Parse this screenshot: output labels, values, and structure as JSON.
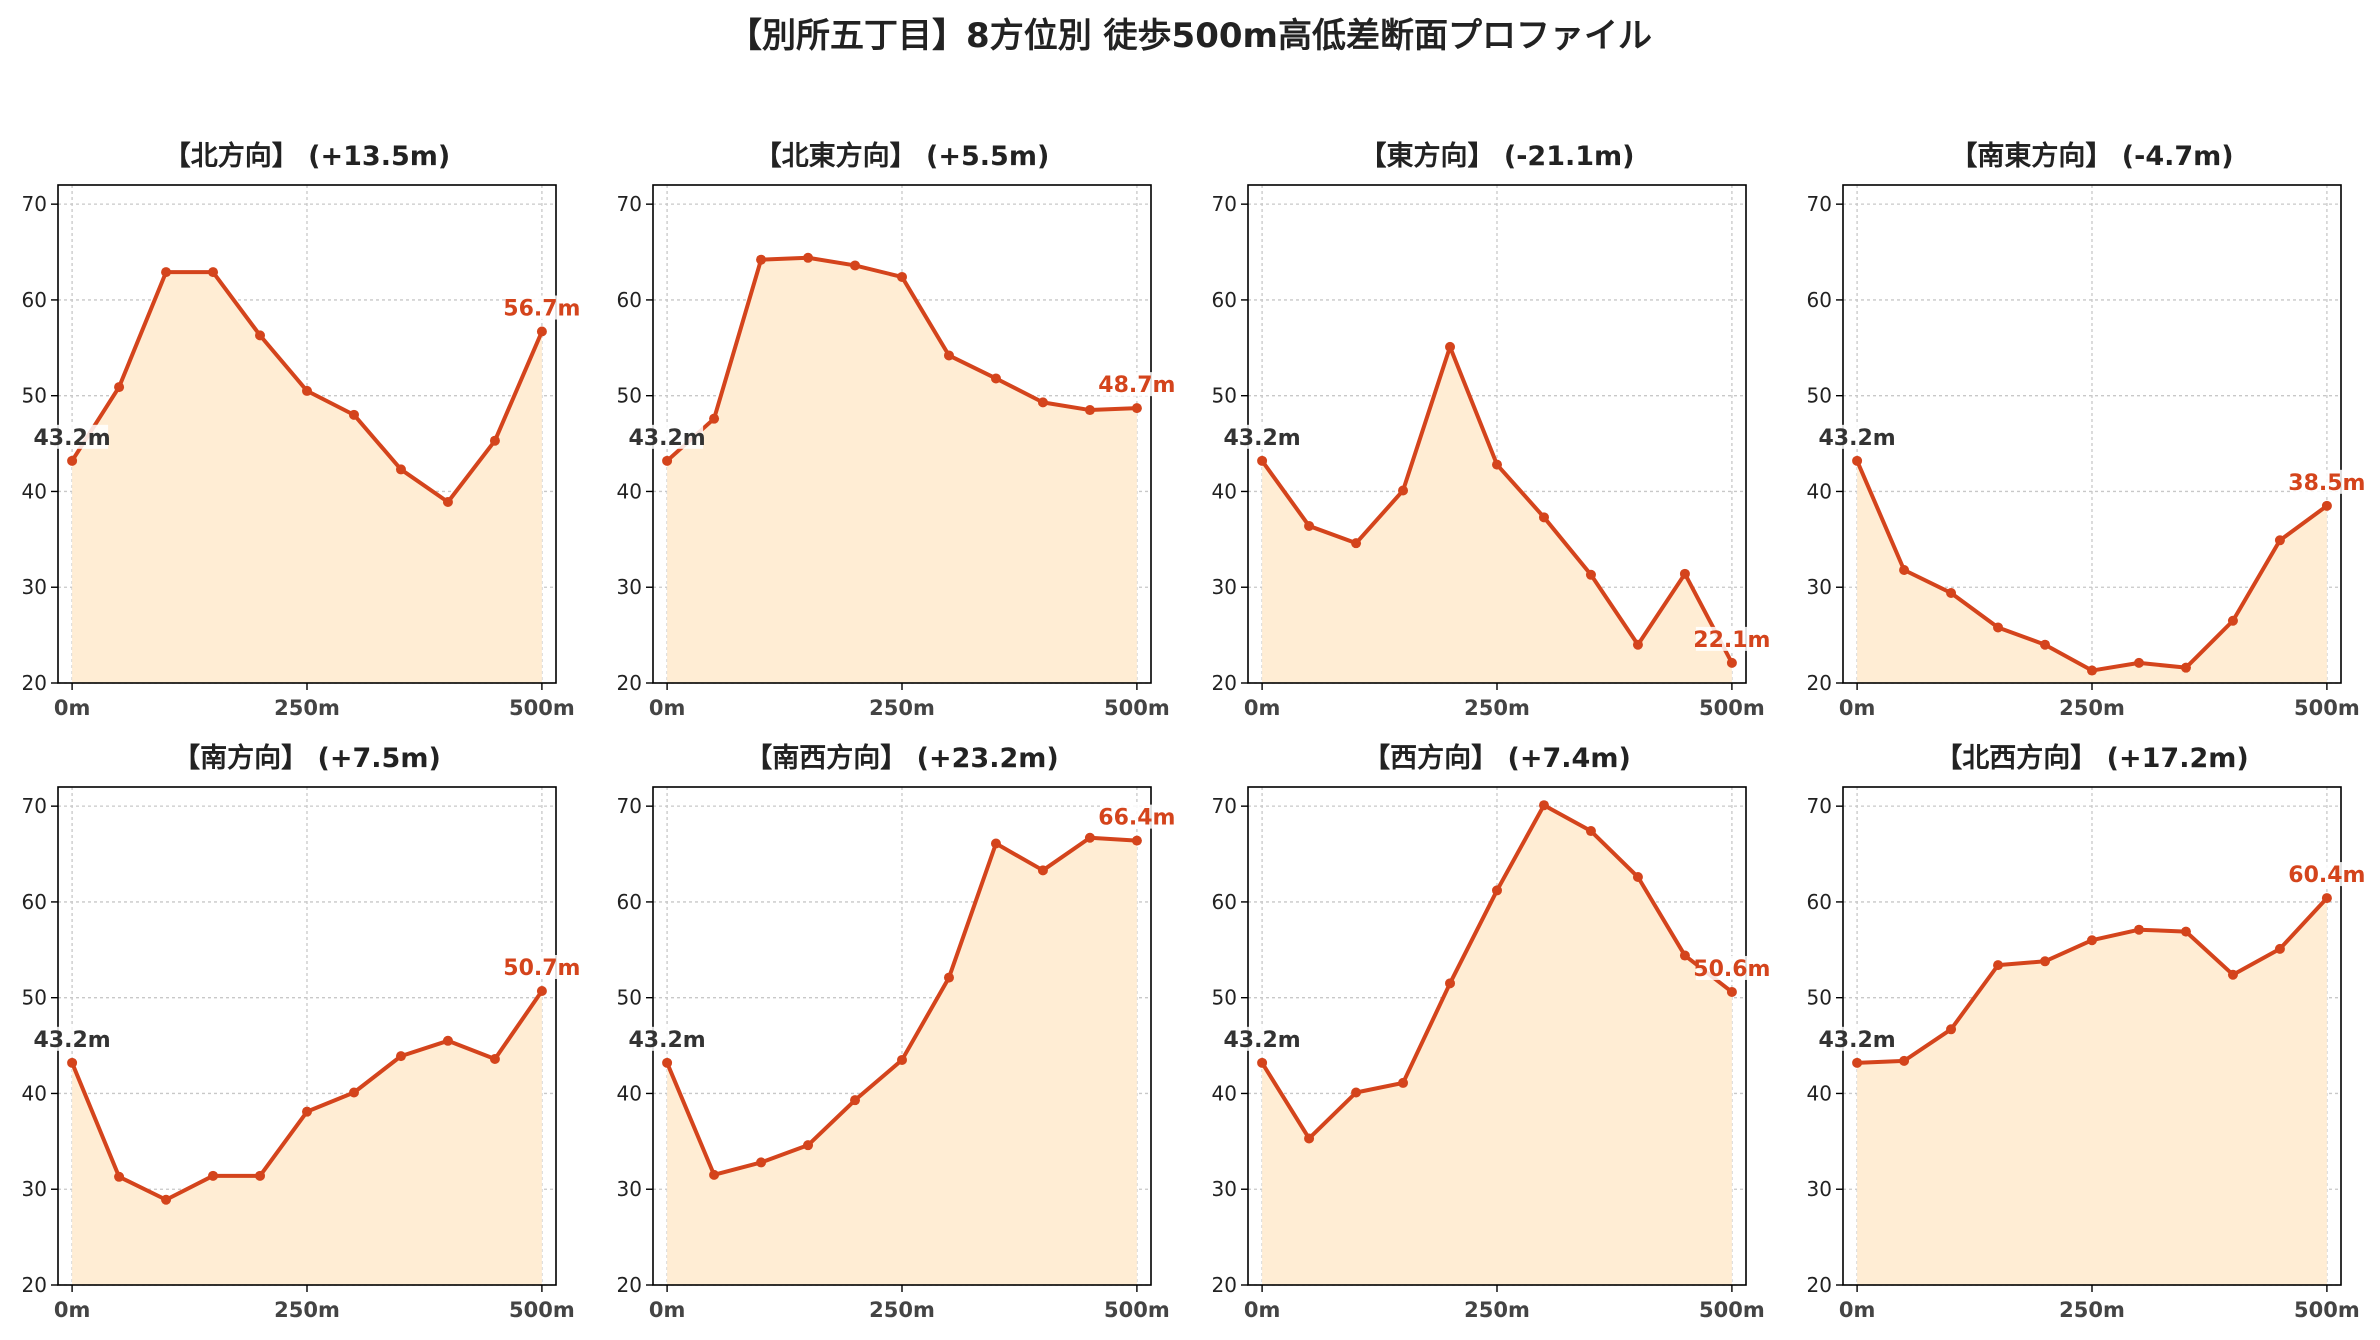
{
  "title": "【別所五丁目】8方位別 徒歩500m高低差断面プロファイル",
  "colors": {
    "line": "#d4441c",
    "fill": "#ffedd4",
    "start_label": "#333333",
    "end_label": "#d4441c",
    "grid": "#c8c8c8",
    "axis": "#000000"
  },
  "chart_data": [
    {
      "type": "area",
      "title": "【北方向】 (+13.5m)",
      "x": [
        0,
        50,
        100,
        150,
        200,
        250,
        300,
        350,
        400,
        450,
        500
      ],
      "y": [
        43.2,
        50.9,
        62.9,
        62.9,
        56.3,
        50.5,
        48.0,
        42.3,
        38.9,
        45.3,
        56.7
      ],
      "xticks": [
        0,
        250,
        500
      ],
      "xtick_labels": [
        "0m",
        "250m",
        "500m"
      ],
      "yticks": [
        20,
        30,
        40,
        50,
        60,
        70
      ],
      "xlim": [
        -15,
        515
      ],
      "ylim": [
        20,
        72
      ],
      "start_label": "43.2m",
      "end_label": "56.7m",
      "grid": true
    },
    {
      "type": "area",
      "title": "【北東方向】 (+5.5m)",
      "x": [
        0,
        50,
        100,
        150,
        200,
        250,
        300,
        350,
        400,
        450,
        500
      ],
      "y": [
        43.2,
        47.6,
        64.2,
        64.4,
        63.6,
        62.4,
        54.2,
        51.8,
        49.3,
        48.5,
        48.7
      ],
      "xticks": [
        0,
        250,
        500
      ],
      "xtick_labels": [
        "0m",
        "250m",
        "500m"
      ],
      "yticks": [
        20,
        30,
        40,
        50,
        60,
        70
      ],
      "xlim": [
        -15,
        515
      ],
      "ylim": [
        20,
        72
      ],
      "start_label": "43.2m",
      "end_label": "48.7m",
      "grid": true
    },
    {
      "type": "area",
      "title": "【東方向】 (-21.1m)",
      "x": [
        0,
        50,
        100,
        150,
        200,
        250,
        300,
        350,
        400,
        450,
        500
      ],
      "y": [
        43.2,
        36.4,
        34.6,
        40.1,
        55.1,
        42.8,
        37.3,
        31.3,
        24.0,
        31.4,
        22.1
      ],
      "xticks": [
        0,
        250,
        500
      ],
      "xtick_labels": [
        "0m",
        "250m",
        "500m"
      ],
      "yticks": [
        20,
        30,
        40,
        50,
        60,
        70
      ],
      "xlim": [
        -15,
        515
      ],
      "ylim": [
        20,
        72
      ],
      "start_label": "43.2m",
      "end_label": "22.1m",
      "grid": true
    },
    {
      "type": "area",
      "title": "【南東方向】 (-4.7m)",
      "x": [
        0,
        50,
        100,
        150,
        200,
        250,
        300,
        350,
        400,
        450,
        500
      ],
      "y": [
        43.2,
        31.8,
        29.4,
        25.8,
        24.0,
        21.3,
        22.1,
        21.6,
        26.5,
        34.9,
        38.5
      ],
      "xticks": [
        0,
        250,
        500
      ],
      "xtick_labels": [
        "0m",
        "250m",
        "500m"
      ],
      "yticks": [
        20,
        30,
        40,
        50,
        60,
        70
      ],
      "xlim": [
        -15,
        515
      ],
      "ylim": [
        20,
        72
      ],
      "start_label": "43.2m",
      "end_label": "38.5m",
      "grid": true
    },
    {
      "type": "area",
      "title": "【南方向】 (+7.5m)",
      "x": [
        0,
        50,
        100,
        150,
        200,
        250,
        300,
        350,
        400,
        450,
        500
      ],
      "y": [
        43.2,
        31.3,
        28.9,
        31.4,
        31.4,
        38.1,
        40.1,
        43.9,
        45.5,
        43.6,
        50.7
      ],
      "xticks": [
        0,
        250,
        500
      ],
      "xtick_labels": [
        "0m",
        "250m",
        "500m"
      ],
      "yticks": [
        20,
        30,
        40,
        50,
        60,
        70
      ],
      "xlim": [
        -15,
        515
      ],
      "ylim": [
        20,
        72
      ],
      "start_label": "43.2m",
      "end_label": "50.7m",
      "grid": true
    },
    {
      "type": "area",
      "title": "【南西方向】 (+23.2m)",
      "x": [
        0,
        50,
        100,
        150,
        200,
        250,
        300,
        350,
        400,
        450,
        500
      ],
      "y": [
        43.2,
        31.5,
        32.8,
        34.6,
        39.3,
        43.5,
        52.1,
        66.1,
        63.3,
        66.7,
        66.4
      ],
      "xticks": [
        0,
        250,
        500
      ],
      "xtick_labels": [
        "0m",
        "250m",
        "500m"
      ],
      "yticks": [
        20,
        30,
        40,
        50,
        60,
        70
      ],
      "xlim": [
        -15,
        515
      ],
      "ylim": [
        20,
        72
      ],
      "start_label": "43.2m",
      "end_label": "66.4m",
      "grid": true
    },
    {
      "type": "area",
      "title": "【西方向】 (+7.4m)",
      "x": [
        0,
        50,
        100,
        150,
        200,
        250,
        300,
        350,
        400,
        450,
        500
      ],
      "y": [
        43.2,
        35.3,
        40.1,
        41.1,
        51.5,
        61.2,
        70.1,
        67.4,
        62.6,
        54.4,
        50.6
      ],
      "xticks": [
        0,
        250,
        500
      ],
      "xtick_labels": [
        "0m",
        "250m",
        "500m"
      ],
      "yticks": [
        20,
        30,
        40,
        50,
        60,
        70
      ],
      "xlim": [
        -15,
        515
      ],
      "ylim": [
        20,
        72
      ],
      "start_label": "43.2m",
      "end_label": "50.6m",
      "grid": true
    },
    {
      "type": "area",
      "title": "【北西方向】 (+17.2m)",
      "x": [
        0,
        50,
        100,
        150,
        200,
        250,
        300,
        350,
        400,
        450,
        500
      ],
      "y": [
        43.2,
        43.4,
        46.7,
        53.4,
        53.8,
        56.0,
        57.1,
        56.9,
        52.4,
        55.1,
        60.4
      ],
      "xticks": [
        0,
        250,
        500
      ],
      "xtick_labels": [
        "0m",
        "250m",
        "500m"
      ],
      "yticks": [
        20,
        30,
        40,
        50,
        60,
        70
      ],
      "xlim": [
        -15,
        515
      ],
      "ylim": [
        20,
        72
      ],
      "start_label": "43.2m",
      "end_label": "60.4m",
      "grid": true
    }
  ]
}
